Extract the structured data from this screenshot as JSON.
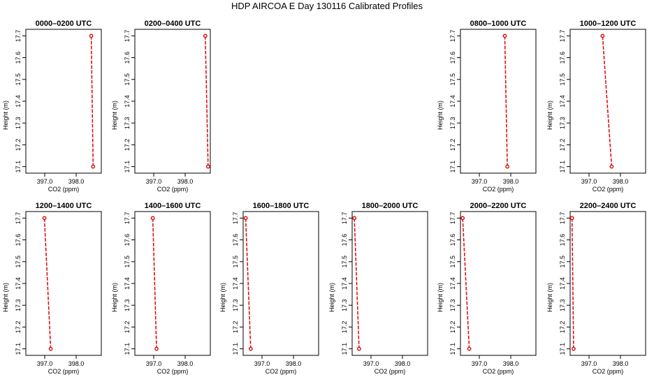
{
  "title": "HDP AIRCOA E  Day 130116  Calibrated Profiles",
  "colors": {
    "profile": "#dd0000",
    "axis": "#000000"
  },
  "chart_data": [
    {
      "type": "line",
      "title": "0000–0200 UTC",
      "xlabel": "CO2 (ppm)",
      "ylabel": "Height (m)",
      "xlim": [
        396.4,
        398.8
      ],
      "ylim": [
        17.07,
        17.73
      ],
      "xticks": [
        "397.0",
        "398.0"
      ],
      "yticks": [
        "17.1",
        "17.2",
        "17.3",
        "17.4",
        "17.5",
        "17.6",
        "17.7"
      ],
      "series": [
        {
          "points": [
            {
              "x": 398.54,
              "y": 17.1
            },
            {
              "x": 398.48,
              "y": 17.7
            }
          ]
        }
      ]
    },
    {
      "type": "line",
      "title": "0200–0400 UTC",
      "xlabel": "CO2 (ppm)",
      "ylabel": "Height (m)",
      "xlim": [
        396.4,
        398.8
      ],
      "ylim": [
        17.07,
        17.73
      ],
      "xticks": [
        "397.0",
        "398.0"
      ],
      "yticks": [
        "17.1",
        "17.2",
        "17.3",
        "17.4",
        "17.5",
        "17.6",
        "17.7"
      ],
      "series": [
        {
          "points": [
            {
              "x": 398.73,
              "y": 17.1
            },
            {
              "x": 398.64,
              "y": 17.7
            }
          ]
        }
      ]
    },
    {
      "type": "line",
      "title": "0800–1000 UTC",
      "xlabel": "CO2 (ppm)",
      "ylabel": "Height (m)",
      "xlim": [
        396.4,
        398.8
      ],
      "ylim": [
        17.07,
        17.73
      ],
      "xticks": [
        "397.0",
        "398.0"
      ],
      "yticks": [
        "17.1",
        "17.2",
        "17.3",
        "17.4",
        "17.5",
        "17.6",
        "17.7"
      ],
      "series": [
        {
          "points": [
            {
              "x": 397.89,
              "y": 17.1
            },
            {
              "x": 397.81,
              "y": 17.7
            }
          ]
        }
      ]
    },
    {
      "type": "line",
      "title": "1000–1200 UTC",
      "xlabel": "CO2 (ppm)",
      "ylabel": "Height (m)",
      "xlim": [
        396.4,
        398.8
      ],
      "ylim": [
        17.07,
        17.73
      ],
      "xticks": [
        "397.0",
        "398.0"
      ],
      "yticks": [
        "17.1",
        "17.2",
        "17.3",
        "17.4",
        "17.5",
        "17.6",
        "17.7"
      ],
      "series": [
        {
          "points": [
            {
              "x": 397.72,
              "y": 17.1
            },
            {
              "x": 397.43,
              "y": 17.7
            }
          ]
        }
      ]
    },
    {
      "type": "line",
      "title": "1200–1400 UTC",
      "xlabel": "CO2 (ppm)",
      "ylabel": "Height (m)",
      "xlim": [
        396.4,
        398.8
      ],
      "ylim": [
        17.07,
        17.73
      ],
      "xticks": [
        "397.0",
        "398.0"
      ],
      "yticks": [
        "17.1",
        "17.2",
        "17.3",
        "17.4",
        "17.5",
        "17.6",
        "17.7"
      ],
      "series": [
        {
          "points": [
            {
              "x": 397.19,
              "y": 17.1
            },
            {
              "x": 396.99,
              "y": 17.7
            }
          ]
        }
      ]
    },
    {
      "type": "line",
      "title": "1400–1600 UTC",
      "xlabel": "CO2 (ppm)",
      "ylabel": "Height (m)",
      "xlim": [
        396.4,
        398.8
      ],
      "ylim": [
        17.07,
        17.73
      ],
      "xticks": [
        "397.0",
        "398.0"
      ],
      "yticks": [
        "17.1",
        "17.2",
        "17.3",
        "17.4",
        "17.5",
        "17.6",
        "17.7"
      ],
      "series": [
        {
          "points": [
            {
              "x": 397.09,
              "y": 17.1
            },
            {
              "x": 396.97,
              "y": 17.7
            }
          ]
        }
      ]
    },
    {
      "type": "line",
      "title": "1600–1800 UTC",
      "xlabel": "CO2 (ppm)",
      "ylabel": "Height (m)",
      "xlim": [
        396.4,
        398.8
      ],
      "ylim": [
        17.07,
        17.73
      ],
      "xticks": [
        "397.0",
        "398.0"
      ],
      "yticks": [
        "17.1",
        "17.2",
        "17.3",
        "17.4",
        "17.5",
        "17.6",
        "17.7"
      ],
      "series": [
        {
          "points": [
            {
              "x": 396.64,
              "y": 17.1
            },
            {
              "x": 396.48,
              "y": 17.7
            }
          ]
        }
      ]
    },
    {
      "type": "line",
      "title": "1800–2000 UTC",
      "xlabel": "CO2 (ppm)",
      "ylabel": "Height (m)",
      "xlim": [
        396.4,
        398.8
      ],
      "ylim": [
        17.07,
        17.73
      ],
      "xticks": [
        "397.0",
        "398.0"
      ],
      "yticks": [
        "17.1",
        "17.2",
        "17.3",
        "17.4",
        "17.5",
        "17.6",
        "17.7"
      ],
      "series": [
        {
          "points": [
            {
              "x": 396.62,
              "y": 17.1
            },
            {
              "x": 396.47,
              "y": 17.7
            }
          ]
        }
      ]
    },
    {
      "type": "line",
      "title": "2000–2200 UTC",
      "xlabel": "CO2 (ppm)",
      "ylabel": "Height (m)",
      "xlim": [
        396.4,
        398.8
      ],
      "ylim": [
        17.07,
        17.73
      ],
      "xticks": [
        "397.0",
        "398.0"
      ],
      "yticks": [
        "17.1",
        "17.2",
        "17.3",
        "17.4",
        "17.5",
        "17.6",
        "17.7"
      ],
      "series": [
        {
          "points": [
            {
              "x": 396.68,
              "y": 17.1
            },
            {
              "x": 396.47,
              "y": 17.7
            }
          ]
        }
      ]
    },
    {
      "type": "line",
      "title": "2200–2400 UTC",
      "xlabel": "CO2 (ppm)",
      "ylabel": "Height (m)",
      "xlim": [
        396.4,
        398.8
      ],
      "ylim": [
        17.07,
        17.73
      ],
      "xticks": [
        "397.0",
        "398.0"
      ],
      "yticks": [
        "17.1",
        "17.2",
        "17.3",
        "17.4",
        "17.5",
        "17.6",
        "17.7"
      ],
      "series": [
        {
          "points": [
            {
              "x": 396.51,
              "y": 17.1
            },
            {
              "x": 396.46,
              "y": 17.7
            }
          ]
        }
      ]
    }
  ]
}
